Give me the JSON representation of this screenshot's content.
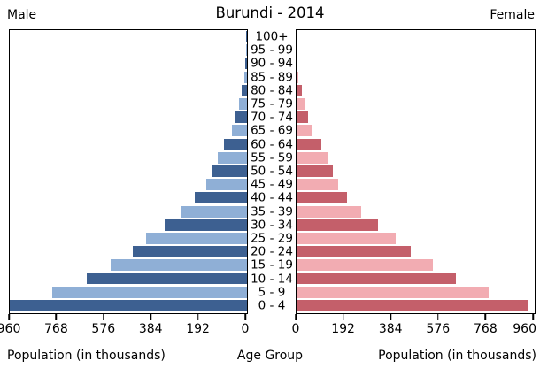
{
  "title": "Burundi - 2014",
  "left_header": "Male",
  "right_header": "Female",
  "labels": {
    "left_axis": "Population (in thousands)",
    "center_axis": "Age Group",
    "right_axis": "Population (in thousands)"
  },
  "axis": {
    "male_ticks": [
      "960",
      "768",
      "576",
      "384",
      "192",
      "0"
    ],
    "female_ticks": [
      "0",
      "192",
      "384",
      "576",
      "768",
      "960"
    ],
    "max": 960
  },
  "colors": {
    "male_dark": "#3D6091",
    "male_light": "#8FAFD6",
    "female_dark": "#C45F6A",
    "female_light": "#F2ACB2",
    "axis_line": "#000000"
  },
  "chart_data": {
    "type": "bar",
    "subtype": "population-pyramid",
    "title": "Burundi - 2014",
    "xlabel": "Population (in thousands)",
    "ylabel": "Age Group",
    "xlim": [
      0,
      960
    ],
    "grid": false,
    "categories_order": "top-to-bottom",
    "categories": [
      "100+",
      "95 - 99",
      "90 - 94",
      "85 - 89",
      "80 - 84",
      "75 - 79",
      "70 - 74",
      "65 - 69",
      "60 - 64",
      "55 - 59",
      "50 - 54",
      "45 - 49",
      "40 - 44",
      "35 - 39",
      "30 - 34",
      "25 - 29",
      "20 - 24",
      "15 - 19",
      "10 - 14",
      "5 - 9",
      "0 - 4"
    ],
    "series": [
      {
        "name": "Male",
        "values": [
          2,
          3,
          6,
          11,
          21,
          32,
          46,
          61,
          92,
          120,
          142,
          166,
          210,
          265,
          333,
          408,
          461,
          550,
          648,
          788,
          960
        ]
      },
      {
        "name": "Female",
        "values": [
          2,
          3,
          5,
          8,
          23,
          34,
          48,
          64,
          99,
          128,
          145,
          167,
          205,
          262,
          330,
          401,
          461,
          549,
          642,
          773,
          932
        ]
      }
    ]
  }
}
